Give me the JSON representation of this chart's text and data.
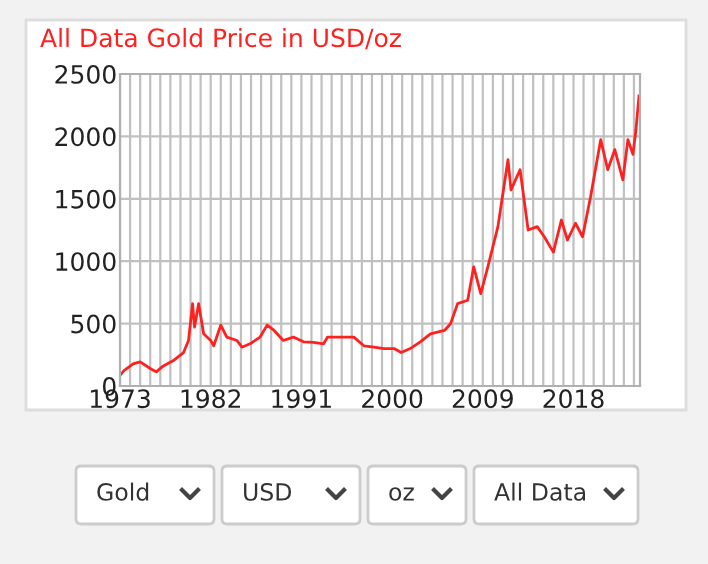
{
  "chart_data": {
    "type": "line",
    "title": "All Data Gold Price in USD/oz",
    "x": [
      1973.0,
      1973.4,
      1974.3,
      1975.0,
      1976.0,
      1976.6,
      1977.3,
      1978.3,
      1979.3,
      1979.8,
      1980.2,
      1980.4,
      1980.8,
      1981.3,
      1982.0,
      1982.3,
      1983.0,
      1983.6,
      1984.6,
      1985.1,
      1985.9,
      1986.9,
      1987.6,
      1988.3,
      1989.2,
      1990.2,
      1991.2,
      1992.2,
      1993.2,
      1993.6,
      1994.6,
      1996.2,
      1997.2,
      1998.2,
      1999.2,
      2000.2,
      2000.9,
      2001.8,
      2002.8,
      2003.8,
      2005.2,
      2005.8,
      2006.5,
      2007.5,
      2008.1,
      2008.8,
      2009.5,
      2010.5,
      2011.5,
      2011.8,
      2012.7,
      2013.5,
      2014.4,
      2015.1,
      2016.0,
      2016.8,
      2017.4,
      2018.2,
      2018.9,
      2019.7,
      2020.7,
      2021.4,
      2022.1,
      2022.9,
      2023.4,
      2023.9,
      2024.2,
      2024.5
    ],
    "series": [
      {
        "color": "#ff2020",
        "values": [
          86,
          123,
          177,
          193,
          140,
          113,
          161,
          204,
          268,
          365,
          660,
          472,
          660,
          418,
          365,
          322,
          488,
          392,
          365,
          311,
          338,
          392,
          488,
          445,
          365,
          392,
          354,
          349,
          338,
          392,
          392,
          392,
          322,
          311,
          300,
          300,
          268,
          300,
          354,
          418,
          445,
          499,
          660,
          687,
          955,
          740,
          955,
          1277,
          1813,
          1572,
          1733,
          1250,
          1277,
          1196,
          1073,
          1330,
          1170,
          1304,
          1196,
          1518,
          1974,
          1733,
          1894,
          1652,
          1974,
          1856,
          2055,
          2323
        ]
      }
    ],
    "xlim": [
      1973,
      2024.6
    ],
    "xticks": [
      1973,
      {
        "value": 1974,
        "label": null
      },
      {
        "value": 1975,
        "label": null
      },
      {
        "value": 1976,
        "label": null
      },
      {
        "value": 1977,
        "label": null
      },
      {
        "value": 1978,
        "label": null
      },
      {
        "value": 1979,
        "label": null
      },
      {
        "value": 1980,
        "label": null
      },
      {
        "value": 1981,
        "label": null
      },
      1982,
      {
        "value": 1983,
        "label": null
      },
      {
        "value": 1984,
        "label": null
      },
      {
        "value": 1985,
        "label": null
      },
      {
        "value": 1986,
        "label": null
      },
      {
        "value": 1987,
        "label": null
      },
      {
        "value": 1988,
        "label": null
      },
      {
        "value": 1989,
        "label": null
      },
      {
        "value": 1990,
        "label": null
      },
      1991,
      {
        "value": 1992,
        "label": null
      },
      {
        "value": 1993,
        "label": null
      },
      {
        "value": 1994,
        "label": null
      },
      {
        "value": 1995,
        "label": null
      },
      {
        "value": 1996,
        "label": null
      },
      {
        "value": 1997,
        "label": null
      },
      {
        "value": 1998,
        "label": null
      },
      {
        "value": 1999,
        "label": null
      },
      2000,
      {
        "value": 2001,
        "label": null
      },
      {
        "value": 2002,
        "label": null
      },
      {
        "value": 2003,
        "label": null
      },
      {
        "value": 2004,
        "label": null
      },
      {
        "value": 2005,
        "label": null
      },
      {
        "value": 2006,
        "label": null
      },
      {
        "value": 2007,
        "label": null
      },
      {
        "value": 2008,
        "label": null
      },
      2009,
      {
        "value": 2010,
        "label": null
      },
      {
        "value": 2011,
        "label": null
      },
      {
        "value": 2012,
        "label": null
      },
      {
        "value": 2013,
        "label": null
      },
      {
        "value": 2014,
        "label": null
      },
      {
        "value": 2015,
        "label": null
      },
      {
        "value": 2016,
        "label": null
      },
      {
        "value": 2017,
        "label": null
      },
      2018,
      {
        "value": 2019,
        "label": null
      },
      {
        "value": 2020,
        "label": null
      },
      {
        "value": 2021,
        "label": null
      },
      {
        "value": 2022,
        "label": null
      },
      {
        "value": 2023,
        "label": null
      },
      {
        "value": 2024,
        "label": null
      }
    ],
    "ylim": [
      0,
      2500
    ],
    "yticks": [
      0,
      500,
      1000,
      1500,
      2000,
      2500
    ],
    "grid": true,
    "annotations": [
      "Gold",
      "USD",
      "oz",
      "All Data"
    ]
  }
}
